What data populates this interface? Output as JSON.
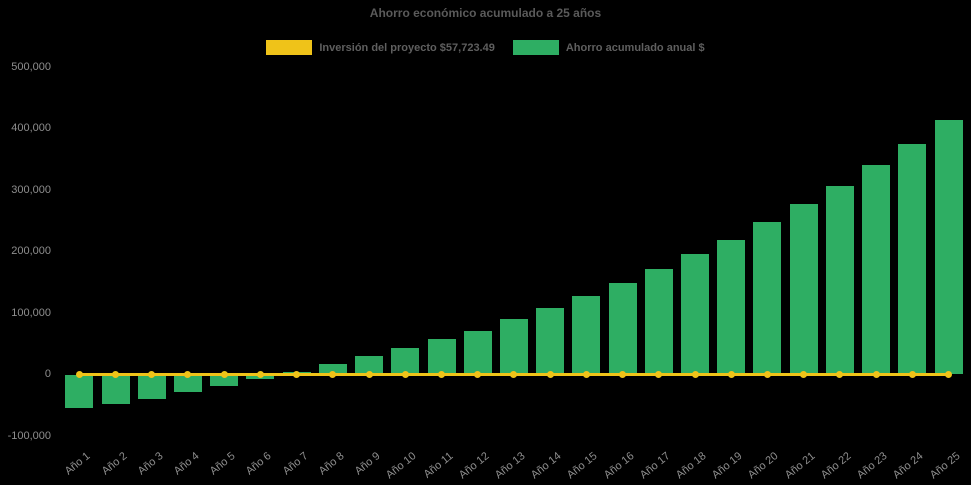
{
  "title": "Ahorro económico acumulado a 25 años",
  "legend": {
    "investment": {
      "label": "Inversión del proyecto $57,723.49",
      "color": "#efc319"
    },
    "savings": {
      "label": "Ahorro acumulado anual $",
      "color": "#2eae63"
    }
  },
  "colors": {
    "background": "#000000",
    "bar": "#2eae63",
    "line": "#efc319",
    "tick_text": "#8e8e8e",
    "title_text": "#5a5a5a"
  },
  "chart_data": {
    "type": "bar",
    "title": "Ahorro económico acumulado a 25 años",
    "xlabel": "",
    "ylabel": "",
    "ylim": [
      -100000,
      500000
    ],
    "ytick_step": 100000,
    "ytick_labels": [
      "-100,000",
      "0",
      "100,000",
      "200,000",
      "300,000",
      "400,000",
      "500,000"
    ],
    "grid": false,
    "legend_position": "top",
    "categories": [
      "Año 1",
      "Año 2",
      "Año 3",
      "Año 4",
      "Año 5",
      "Año 6",
      "Año 7",
      "Año 8",
      "Año 9",
      "Año 10",
      "Año 11",
      "Año 12",
      "Año 13",
      "Año 14",
      "Año 15",
      "Año 16",
      "Año 17",
      "Año 18",
      "Año 19",
      "Año 20",
      "Año 21",
      "Año 22",
      "Año 23",
      "Año 24",
      "Año 25"
    ],
    "series": [
      {
        "name": "Inversión del proyecto $57,723.49",
        "type": "line",
        "color": "#efc319",
        "values": [
          0,
          0,
          0,
          0,
          0,
          0,
          0,
          0,
          0,
          0,
          0,
          0,
          0,
          0,
          0,
          0,
          0,
          0,
          0,
          0,
          0,
          0,
          0,
          0,
          0
        ]
      },
      {
        "name": "Ahorro acumulado anual $",
        "type": "bar",
        "color": "#2eae63",
        "values": [
          -55000,
          -47500,
          -39500,
          -29000,
          -19000,
          -8000,
          4000,
          16500,
          29500,
          43000,
          58000,
          71500,
          90500,
          108000,
          127500,
          148000,
          171000,
          195500,
          219500,
          248000,
          278000,
          306000,
          340000,
          375500,
          413500
        ]
      }
    ]
  }
}
